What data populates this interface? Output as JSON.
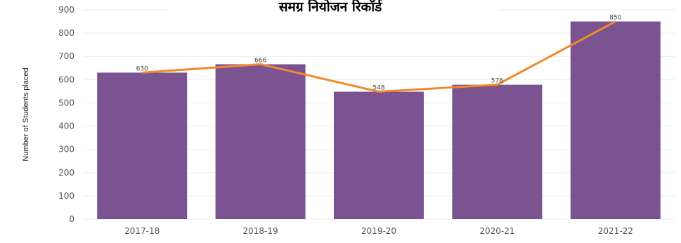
{
  "chart_data": {
    "type": "bar",
    "title": "समग्र नियोजन रिकॉर्ड",
    "ylabel": "Number of Students placed",
    "xlabel": "",
    "categories": [
      "2017-18",
      "2018-19",
      "2019-20",
      "2020-21",
      "2021-22"
    ],
    "series": [
      {
        "type": "bar",
        "values": [
          630,
          666,
          548,
          578,
          850
        ]
      },
      {
        "type": "line",
        "values": [
          630,
          666,
          548,
          578,
          850
        ]
      }
    ],
    "data_labels": [
      "630",
      "666",
      "548",
      "578",
      "850"
    ],
    "ylim": [
      0,
      900
    ],
    "yticks": [
      "0",
      "100",
      "200",
      "300",
      "400",
      "500",
      "600",
      "700",
      "800",
      "900"
    ],
    "grid": true,
    "colors": {
      "bar": "#7b5391",
      "line": "#f0892a"
    }
  }
}
